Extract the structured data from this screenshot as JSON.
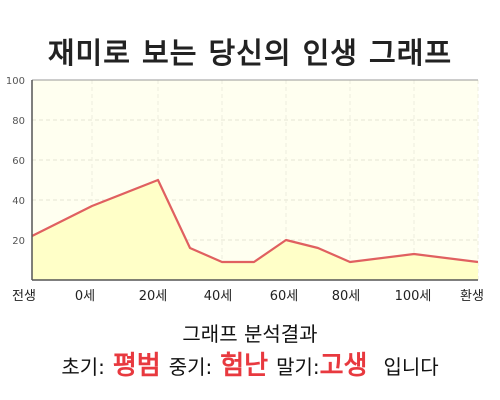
{
  "title": "재미로 보는 당신의 인생 그래프",
  "chart_data": {
    "type": "area",
    "x_tick_labels": [
      "전생",
      "0세",
      "20세",
      "40세",
      "60세",
      "80세",
      "100세",
      "환생"
    ],
    "y_ticks": [
      20,
      40,
      60,
      80,
      100
    ],
    "ylim": [
      0,
      100
    ],
    "grid": true,
    "series": [
      {
        "points": [
          {
            "x": "전생",
            "y": 22
          },
          {
            "x": "0세",
            "y": 37
          },
          {
            "x": "20세",
            "y": 50
          },
          {
            "x": "30세",
            "y": 16
          },
          {
            "x": "40세",
            "y": 9
          },
          {
            "x": "50세",
            "y": 9
          },
          {
            "x": "60세",
            "y": 20
          },
          {
            "x": "70세",
            "y": 16
          },
          {
            "x": "80세",
            "y": 9
          },
          {
            "x": "100세",
            "y": 13
          },
          {
            "x": "환생",
            "y": 9
          }
        ]
      }
    ],
    "colors": {
      "line": "#e06060",
      "fill": "#ffffc8",
      "plot_bg": "#fffff0"
    }
  },
  "analysis": {
    "heading": "그래프 분석결과",
    "early_label": "초기:",
    "early_value": "평범",
    "mid_label": "중기:",
    "mid_value": "험난",
    "late_label": "말기:",
    "late_value": "고생",
    "ending": "입니다"
  }
}
